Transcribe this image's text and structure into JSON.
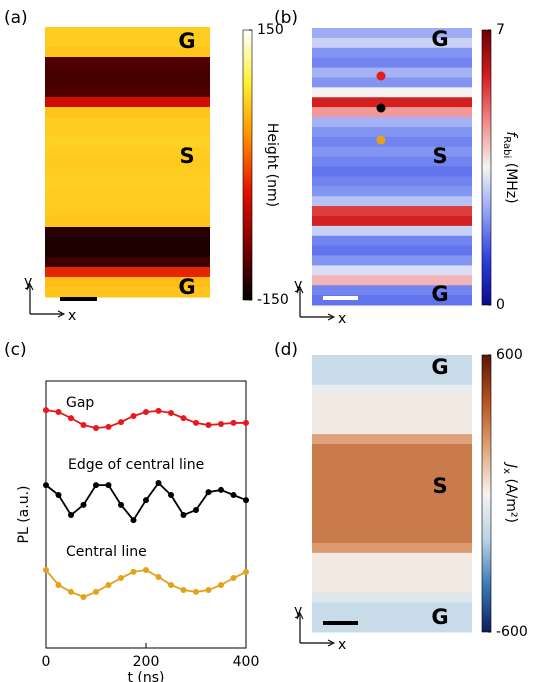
{
  "chart_data": [
    {
      "type": "heatmap",
      "panel_label": "(a)",
      "values": [
        70,
        70,
        65,
        -110,
        -115,
        -115,
        -110,
        -40,
        65,
        70,
        70,
        72,
        70,
        68,
        70,
        72,
        70,
        70,
        68,
        65,
        -130,
        -135,
        -135,
        -120,
        -20,
        60,
        65
      ],
      "zlim": [
        -150,
        150
      ],
      "zticks": [
        -150,
        150
      ],
      "colormap": [
        "#000000",
        "#7a0000",
        "#e01000",
        "#ff8c00",
        "#ffee30",
        "#ffffff"
      ],
      "colorbar_label": {
        "symbol": "Height (nm)"
      },
      "annotations": [
        "G",
        "S",
        "G"
      ],
      "x_label": "x",
      "y_label": "y"
    },
    {
      "type": "heatmap",
      "panel_label": "(b)",
      "values": [
        2.5,
        3.0,
        2.2,
        2.0,
        2.6,
        2.2,
        3.5,
        5.8,
        4.5,
        2.6,
        2.2,
        2.0,
        2.2,
        2.0,
        1.8,
        2.0,
        2.2,
        2.8,
        5.5,
        5.8,
        3.0,
        2.0,
        1.8,
        2.2,
        3.2,
        4.2,
        2.0,
        1.8
      ],
      "zlim": [
        0,
        7
      ],
      "zticks": [
        0,
        7
      ],
      "colormap": [
        "#0a0a8c",
        "#2d3fe0",
        "#8ea0f5",
        "#f4f4f4",
        "#f08a8a",
        "#d21e1e",
        "#6e0000"
      ],
      "colorbar_label": {
        "symbol": "f",
        "subscript": "Rabi",
        "unit": " (MHz)"
      },
      "annotations": [
        "G",
        "S",
        "G"
      ],
      "x_label": "x",
      "y_label": "y"
    },
    {
      "type": "line",
      "panel_label": "(c)",
      "x_label": "t (ns)",
      "y_label": "PL (a.u.)",
      "x": [
        0,
        25,
        50,
        75,
        100,
        125,
        150,
        175,
        200,
        225,
        250,
        275,
        300,
        325,
        350,
        375,
        400
      ],
      "xlim": [
        0,
        400
      ],
      "xticks": [
        0,
        200,
        400
      ],
      "ylim": [
        0,
        10
      ],
      "series": [
        {
          "name": "Gap",
          "color": "#e8191c",
          "values": [
            8.91,
            8.84,
            8.61,
            8.35,
            8.24,
            8.28,
            8.46,
            8.69,
            8.84,
            8.88,
            8.8,
            8.61,
            8.43,
            8.35,
            8.39,
            8.43,
            8.43
          ]
        },
        {
          "name": "Edge of central line",
          "color": "#000000",
          "values": [
            6.1,
            5.73,
            4.98,
            5.36,
            6.1,
            6.1,
            5.36,
            4.79,
            5.54,
            6.18,
            5.73,
            4.98,
            5.17,
            5.84,
            5.92,
            5.73,
            5.54
          ]
        },
        {
          "name": "Central line",
          "color": "#e3a21a",
          "values": [
            2.92,
            2.36,
            2.1,
            1.91,
            2.1,
            2.36,
            2.62,
            2.85,
            2.92,
            2.66,
            2.36,
            2.17,
            2.1,
            2.17,
            2.36,
            2.62,
            2.85
          ]
        }
      ]
    },
    {
      "type": "heatmap",
      "panel_label": "(d)",
      "values": [
        -150,
        -150,
        -150,
        -40,
        20,
        20,
        20,
        20,
        200,
        300,
        300,
        300,
        300,
        300,
        300,
        300,
        300,
        300,
        300,
        220,
        20,
        20,
        20,
        20,
        -80,
        -150,
        -150,
        -150
      ],
      "zlim": [
        -600,
        600
      ],
      "zticks": [
        -600,
        600
      ],
      "colormap": [
        "#0c1e5c",
        "#3a78b4",
        "#b8d4e6",
        "#f5f2ef",
        "#e0a27a",
        "#b4541e",
        "#5a1508"
      ],
      "colorbar_label": {
        "symbol": "J",
        "subscript": "x",
        "unit": " (A/m²)"
      },
      "annotations": [
        "G",
        "S",
        "G"
      ],
      "x_label": "x",
      "y_label": "y"
    }
  ]
}
